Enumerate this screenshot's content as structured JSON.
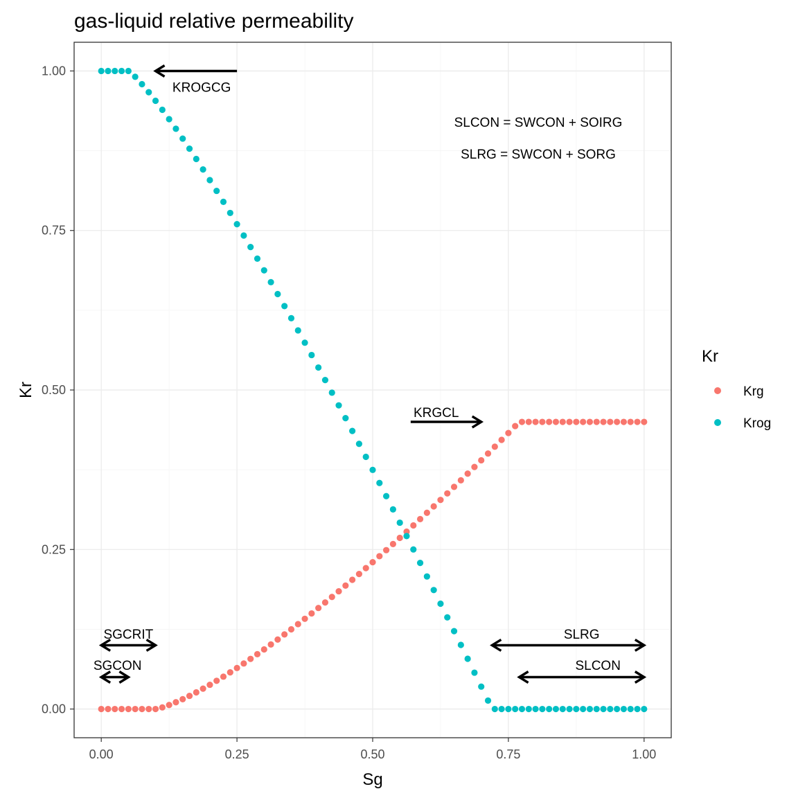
{
  "chart_data": {
    "type": "scatter",
    "title": "gas-liquid relative permeability",
    "xlabel": "Sg",
    "ylabel": "Kr",
    "xlim": [
      -0.05,
      1.05
    ],
    "ylim": [
      -0.045,
      1.045
    ],
    "x_ticks": [
      0,
      0.25,
      0.5,
      0.75,
      1
    ],
    "x_tick_labels": [
      "0.00",
      "0.25",
      "0.50",
      "0.75",
      "1.00"
    ],
    "y_ticks": [
      0,
      0.25,
      0.5,
      0.75,
      1
    ],
    "y_tick_labels": [
      "0.00",
      "0.25",
      "0.50",
      "0.75",
      "1.00"
    ],
    "grid": true,
    "legend": {
      "title": "Kr",
      "placement": "right"
    },
    "series": [
      {
        "name": "Krg",
        "color": "#F8766D",
        "x_start": 0,
        "x_end": 1,
        "x_step": 0.0125,
        "segments": [
          {
            "kind": "flat",
            "x_to": 0.1,
            "y": 0
          },
          {
            "kind": "power",
            "x_from": 0.1,
            "x_to": 0.77,
            "y_from": 0,
            "y_to": 0.45,
            "exponent": 1.3
          },
          {
            "kind": "flat",
            "x_from": 0.77,
            "y": 0.45
          }
        ]
      },
      {
        "name": "Krog",
        "color": "#00BFC4",
        "x_start": 0,
        "x_end": 1,
        "x_step": 0.0125,
        "segments": [
          {
            "kind": "flat",
            "x_to": 0.05,
            "y": 1
          },
          {
            "kind": "power",
            "x_from": 0.05,
            "x_to": 0.72,
            "y_from": 1,
            "y_to": 0,
            "exponent": 1.18
          },
          {
            "kind": "flat",
            "x_from": 0.72,
            "y": 0
          }
        ]
      }
    ],
    "annotations": {
      "text": [
        {
          "label": "KROGCG",
          "x": 0.185,
          "y": 0.975
        },
        {
          "label": "SLCON = SWCON + SOIRG",
          "x": 0.805,
          "y": 0.92
        },
        {
          "label": "SLRG = SWCON + SORG",
          "x": 0.805,
          "y": 0.87
        },
        {
          "label": "KRGCL",
          "x": 0.617,
          "y": 0.465
        },
        {
          "label": "SGCRIT",
          "x": 0.05,
          "y": 0.118
        },
        {
          "label": "SGCON",
          "x": 0.03,
          "y": 0.069
        },
        {
          "label": "SLRG",
          "x": 0.885,
          "y": 0.118
        },
        {
          "label": "SLCON",
          "x": 0.915,
          "y": 0.069
        }
      ],
      "arrows": [
        {
          "name": "krogcg",
          "x1": 0.25,
          "y1": 1,
          "x2": 0.1,
          "y2": 1,
          "heads": "end"
        },
        {
          "name": "krgcl",
          "x1": 0.57,
          "y1": 0.45,
          "x2": 0.7,
          "y2": 0.45,
          "heads": "end"
        },
        {
          "name": "sgcrit",
          "x1": 0,
          "y1": 0.1,
          "x2": 0.1,
          "y2": 0.1,
          "heads": "both"
        },
        {
          "name": "sgcon",
          "x1": 0,
          "y1": 0.05,
          "x2": 0.05,
          "y2": 0.05,
          "heads": "both"
        },
        {
          "name": "slrg",
          "x1": 0.72,
          "y1": 0.1,
          "x2": 1,
          "y2": 0.1,
          "heads": "both"
        },
        {
          "name": "slcon",
          "x1": 0.77,
          "y1": 0.05,
          "x2": 1,
          "y2": 0.05,
          "heads": "both"
        }
      ]
    }
  }
}
